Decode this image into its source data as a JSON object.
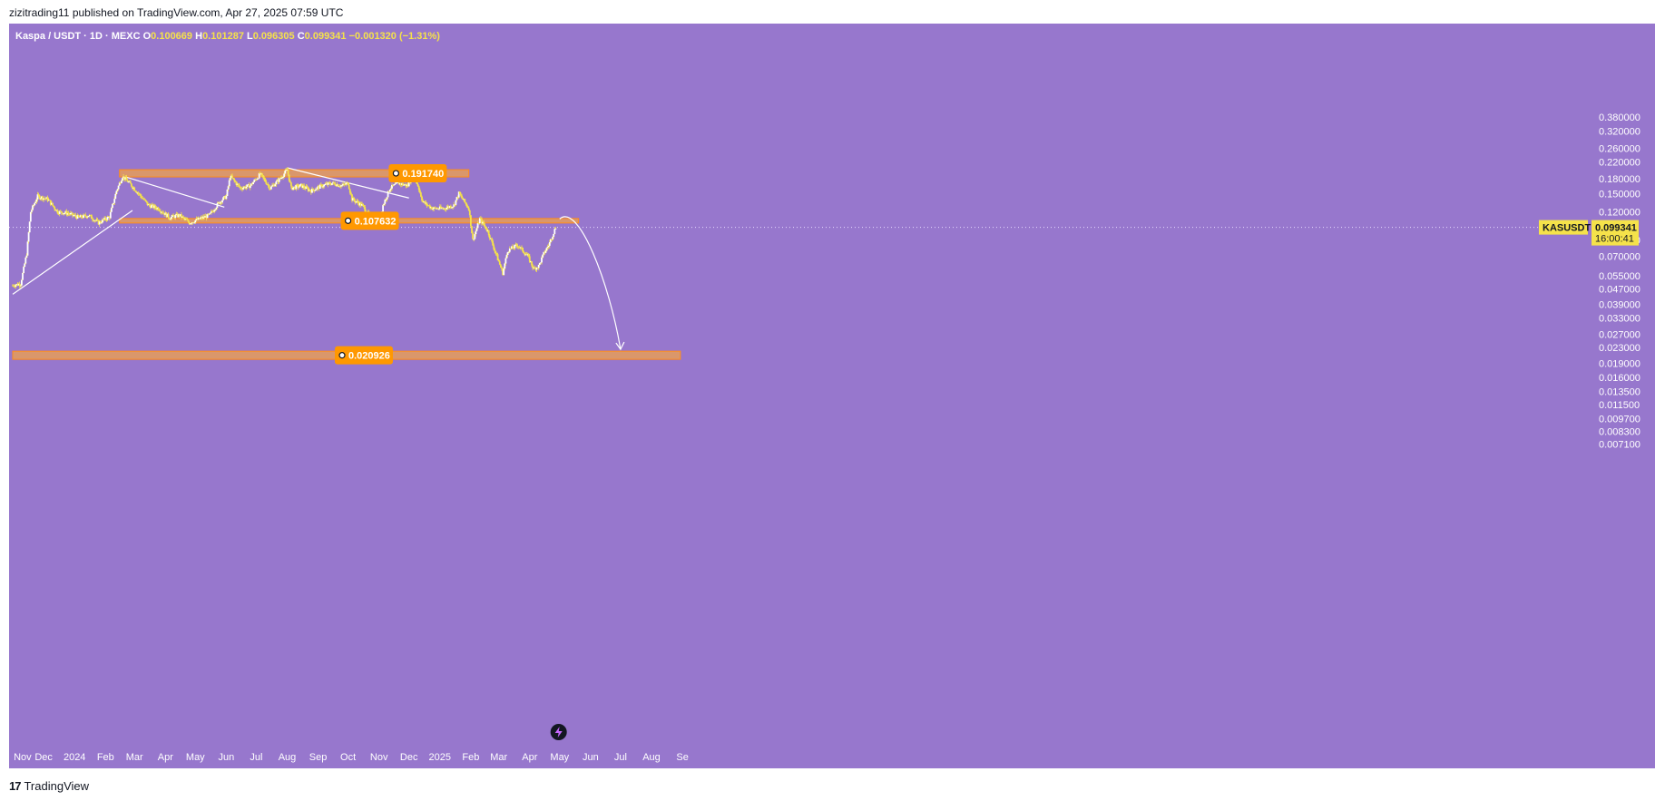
{
  "header": {
    "publisher": "zizitrading11 published on TradingView.com, Apr 27, 2025 07:59 UTC"
  },
  "footer": {
    "brand": "TradingView"
  },
  "legend": {
    "symbol": "Kaspa / USDT · 1D · MEXC",
    "o_label": "O",
    "o": "0.100669",
    "h_label": "H",
    "h": "0.101287",
    "l_label": "L",
    "l": "0.096305",
    "c_label": "C",
    "c": "0.099341",
    "change": "−0.001320 (−1.31%)"
  },
  "colors": {
    "background": "#9777cd",
    "candle": "#f5e24a",
    "candle_alt": "#ffffff",
    "zone": "#f0a14a",
    "tag": "#ff9800",
    "line": "#ffffff"
  },
  "chart_data": {
    "type": "line",
    "title": "",
    "scale": "log",
    "ylim": [
      0.0065,
      0.4
    ],
    "y_ticks": [
      "0.380000",
      "0.320000",
      "0.260000",
      "0.220000",
      "0.180000",
      "0.150000",
      "0.120000",
      "0.085000",
      "0.070000",
      "0.055000",
      "0.047000",
      "0.039000",
      "0.033000",
      "0.027000",
      "0.023000",
      "0.019000",
      "0.016000",
      "0.013500",
      "0.011500",
      "0.009700",
      "0.008300",
      "0.007100"
    ],
    "x_ticks": [
      "Nov",
      "Dec",
      "2024",
      "Feb",
      "Mar",
      "Apr",
      "May",
      "Jun",
      "Jul",
      "Aug",
      "Sep",
      "Oct",
      "Nov",
      "Dec",
      "2025",
      "Feb",
      "Mar",
      "Apr",
      "May",
      "Jun",
      "Jul",
      "Aug",
      "Se"
    ],
    "series": [
      {
        "x": [
          "2023-10-31",
          "2023-11-08",
          "2023-11-14",
          "2023-11-18",
          "2023-11-25",
          "2023-12-05",
          "2023-12-15",
          "2023-12-25",
          "2024-01-05",
          "2024-01-15",
          "2024-01-25",
          "2024-02-05",
          "2024-02-12",
          "2024-02-18",
          "2024-02-25",
          "2024-03-05",
          "2024-03-15",
          "2024-03-25",
          "2024-04-05",
          "2024-04-15",
          "2024-04-25",
          "2024-05-05",
          "2024-05-15",
          "2024-05-25",
          "2024-06-01",
          "2024-06-05",
          "2024-06-15",
          "2024-06-25",
          "2024-07-05",
          "2024-07-15",
          "2024-07-25",
          "2024-08-01",
          "2024-08-05",
          "2024-08-15",
          "2024-08-25",
          "2024-09-05",
          "2024-09-15",
          "2024-09-25",
          "2024-10-01",
          "2024-10-05",
          "2024-10-15",
          "2024-10-25",
          "2024-11-01",
          "2024-11-05",
          "2024-11-12",
          "2024-11-20",
          "2024-11-30",
          "2024-12-05",
          "2024-12-10",
          "2024-12-15",
          "2024-12-25",
          "2025-01-05",
          "2025-01-15",
          "2025-01-20",
          "2025-01-30",
          "2025-02-03",
          "2025-02-10",
          "2025-02-18",
          "2025-02-25",
          "2025-03-05",
          "2025-03-10",
          "2025-03-20",
          "2025-03-30",
          "2025-04-05",
          "2025-04-10",
          "2025-04-15",
          "2025-04-20",
          "2025-04-27"
        ],
        "y": [
          0.049,
          0.05,
          0.072,
          0.12,
          0.145,
          0.14,
          0.12,
          0.118,
          0.112,
          0.115,
          0.105,
          0.113,
          0.155,
          0.185,
          0.17,
          0.15,
          0.13,
          0.125,
          0.112,
          0.115,
          0.105,
          0.11,
          0.115,
          0.135,
          0.145,
          0.185,
          0.16,
          0.165,
          0.19,
          0.16,
          0.18,
          0.2,
          0.16,
          0.165,
          0.155,
          0.165,
          0.17,
          0.165,
          0.17,
          0.14,
          0.13,
          0.11,
          0.105,
          0.13,
          0.16,
          0.17,
          0.165,
          0.19,
          0.165,
          0.135,
          0.125,
          0.125,
          0.13,
          0.15,
          0.125,
          0.085,
          0.11,
          0.095,
          0.075,
          0.057,
          0.075,
          0.08,
          0.07,
          0.06,
          0.062,
          0.072,
          0.08,
          0.099341
        ]
      }
    ],
    "levels": [
      "0.191740",
      "0.107632",
      "0.020926"
    ],
    "last_price": {
      "symbol": "KASUSDT",
      "value": "0.099341",
      "countdown": "16:00:41"
    }
  }
}
